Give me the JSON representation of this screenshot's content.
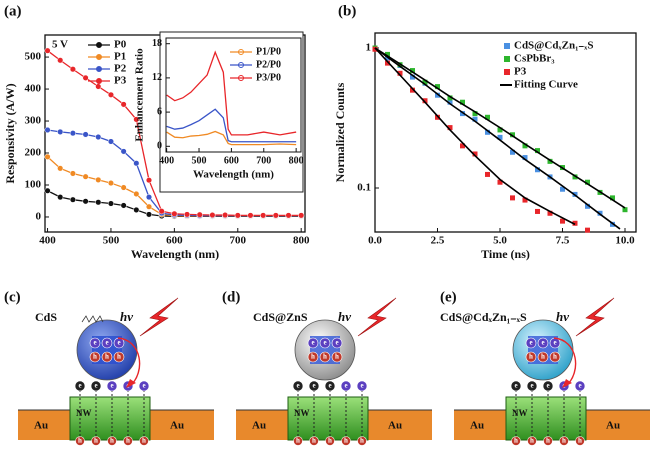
{
  "chart_data": [
    {
      "type": "line",
      "title": "(a)",
      "annotation": "5 V",
      "x_label": "Wavelength (nm)",
      "y_label": "Responsivity (A/W)",
      "x": [
        400,
        420,
        440,
        460,
        480,
        500,
        520,
        540,
        560,
        580,
        600,
        620,
        640,
        660,
        680,
        700,
        720,
        740,
        760,
        780,
        800
      ],
      "xlim": [
        396,
        806
      ],
      "xticks": [
        400,
        500,
        600,
        700,
        800
      ],
      "ylim": [
        -47,
        569
      ],
      "yticks": [
        0,
        100,
        200,
        300,
        400,
        500
      ],
      "markers": true,
      "series": [
        {
          "name": "P0",
          "color": "#111111",
          "values": [
            82,
            62,
            54,
            49,
            46,
            42,
            36,
            22,
            8,
            3,
            2,
            2,
            2,
            2,
            2,
            2,
            2,
            2,
            2,
            2,
            2
          ]
        },
        {
          "name": "P1",
          "color": "#f08a24",
          "values": [
            188,
            152,
            136,
            126,
            116,
            106,
            92,
            72,
            32,
            8,
            4,
            3,
            3,
            3,
            3,
            3,
            3,
            3,
            3,
            3,
            3
          ]
        },
        {
          "name": "P2",
          "color": "#3a55c8",
          "values": [
            272,
            266,
            262,
            258,
            250,
            236,
            205,
            168,
            62,
            12,
            6,
            5,
            4,
            4,
            4,
            4,
            4,
            4,
            4,
            4,
            4
          ]
        },
        {
          "name": "P3",
          "color": "#e8262a",
          "values": [
            520,
            490,
            462,
            435,
            408,
            382,
            352,
            305,
            115,
            18,
            10,
            8,
            7,
            6,
            6,
            5,
            5,
            5,
            5,
            5,
            5
          ]
        }
      ]
    },
    {
      "type": "line",
      "x_label": "Wavelength (nm)",
      "y_label": "Enhancement Ratio",
      "x": [
        400,
        425,
        450,
        475,
        500,
        525,
        550,
        575,
        590,
        600,
        650,
        700,
        750,
        800
      ],
      "xlim": [
        398,
        815
      ],
      "xticks": [
        400,
        500,
        600,
        700,
        800
      ],
      "ylim": [
        -1,
        19
      ],
      "yticks": [
        0,
        6,
        12,
        18
      ],
      "markers": false,
      "series": [
        {
          "name": "P1/P0",
          "color": "#f08a24",
          "values": [
            2.5,
            1.6,
            1.5,
            1.8,
            1.9,
            2.1,
            2.6,
            2.0,
            0.5,
            0.3,
            0.3,
            0.3,
            0.4,
            0.3
          ]
        },
        {
          "name": "P2/P0",
          "color": "#3a55c8",
          "values": [
            3.5,
            3.0,
            3.2,
            3.8,
            4.5,
            5.5,
            6.5,
            5.0,
            1.0,
            0.8,
            0.8,
            0.8,
            0.8,
            0.8
          ]
        },
        {
          "name": "P3/P0",
          "color": "#e8262a",
          "values": [
            9.0,
            8.0,
            8.5,
            9.5,
            11.0,
            12.5,
            16.5,
            13.0,
            3.0,
            2.0,
            2.0,
            2.5,
            2.0,
            2.5
          ]
        }
      ]
    },
    {
      "type": "scatter",
      "title": "(b)",
      "x_label": "Time (ns)",
      "y_label": "Normalized Counts",
      "xlim": [
        0,
        10.44
      ],
      "xticks": [
        {
          "value": 0,
          "label": "0.0"
        },
        2.5,
        {
          "value": 5,
          "label": "5.0"
        },
        7.5,
        {
          "value": 10,
          "label": "10.0"
        }
      ],
      "ylim": [
        0.0485,
        1.28
      ],
      "yticks": [
        0.1,
        1
      ],
      "log_y": true,
      "series": [
        {
          "name": "CdS@CdₓZn₁₋ₓS",
          "color": "#4a90e2",
          "x": [
            0,
            0.5,
            1,
            1.5,
            2,
            2.5,
            3,
            3.5,
            4,
            4.5,
            5,
            5.5,
            6,
            6.5,
            7,
            7.5,
            8,
            8.5,
            9,
            9.5
          ],
          "values": [
            1,
            0.85,
            0.75,
            0.62,
            0.56,
            0.46,
            0.41,
            0.34,
            0.31,
            0.25,
            0.23,
            0.18,
            0.165,
            0.135,
            0.12,
            0.098,
            0.09,
            0.074,
            0.066,
            0.055
          ]
        },
        {
          "name": "CsPbBr₃",
          "color": "#2db52d",
          "x": [
            0,
            0.5,
            1,
            1.5,
            2,
            2.5,
            3,
            3.5,
            4,
            4.5,
            5,
            5.5,
            6,
            6.5,
            7,
            7.5,
            8,
            8.5,
            9,
            9.5,
            10
          ],
          "values": [
            1,
            0.9,
            0.76,
            0.69,
            0.57,
            0.53,
            0.44,
            0.41,
            0.34,
            0.32,
            0.26,
            0.24,
            0.2,
            0.185,
            0.155,
            0.14,
            0.12,
            0.11,
            0.093,
            0.085,
            0.07
          ]
        },
        {
          "name": "P3",
          "color": "#e8262a",
          "x": [
            0,
            0.5,
            1,
            1.5,
            2,
            2.5,
            3,
            3.5,
            4,
            4.5,
            5,
            5.5,
            6,
            6.5,
            7,
            7.5,
            8,
            8.5
          ],
          "values": [
            0.98,
            0.78,
            0.66,
            0.5,
            0.42,
            0.32,
            0.27,
            0.2,
            0.175,
            0.125,
            0.11,
            0.085,
            0.082,
            0.068,
            0.066,
            0.058,
            0.056,
            0.05
          ]
        }
      ],
      "fit": {
        "name": "Fitting Curve",
        "color": "#000000",
        "curves": [
          {
            "x": [
              0,
              1,
              2,
              3,
              4,
              5,
              6,
              7,
              8,
              9,
              9.8
            ],
            "values": [
              1,
              0.74,
              0.55,
              0.4,
              0.3,
              0.22,
              0.16,
              0.12,
              0.089,
              0.065,
              0.051
            ]
          },
          {
            "x": [
              0,
              1,
              2,
              3,
              4,
              5,
              6,
              7,
              8,
              9,
              10
            ],
            "values": [
              1,
              0.77,
              0.59,
              0.45,
              0.35,
              0.27,
              0.206,
              0.158,
              0.122,
              0.094,
              0.072
            ]
          },
          {
            "x": [
              0,
              1,
              2,
              3,
              4,
              5,
              6,
              7,
              8
            ],
            "values": [
              1,
              0.64,
              0.41,
              0.26,
              0.17,
              0.115,
              0.085,
              0.068,
              0.055
            ]
          }
        ]
      }
    }
  ],
  "diagrams": [
    {
      "label": "(c)",
      "material": "CdS",
      "photon": "hν",
      "electrode_left": "Au",
      "channel": "NW",
      "electrode_right": "Au",
      "electron": "e",
      "hole": "h"
    },
    {
      "label": "(d)",
      "material": "CdS@ZnS",
      "photon": "hν",
      "electrode_left": "Au",
      "channel": "NW",
      "electrode_right": "Au",
      "electron": "e",
      "hole": "h"
    },
    {
      "label": "(e)",
      "material": "CdS@CdₓZn₁₋ₓS",
      "photon": "hν",
      "electrode_left": "Au",
      "channel": "NW",
      "electrode_right": "Au",
      "electron": "e",
      "hole": "h"
    }
  ]
}
